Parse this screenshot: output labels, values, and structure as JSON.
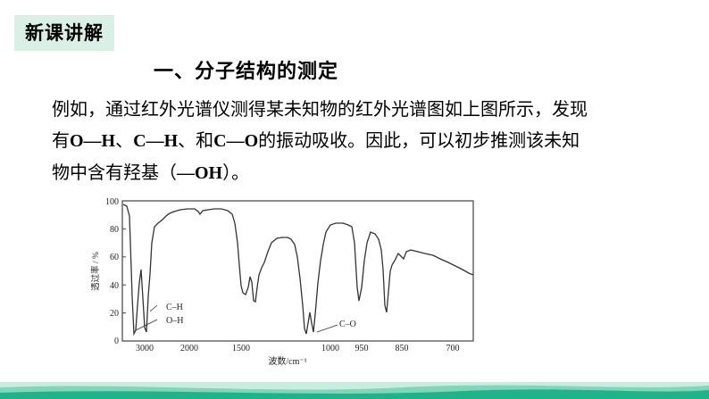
{
  "section_tag": "新课讲解",
  "heading": "一、分子结构的测定",
  "paragraph": {
    "line1": "例如，通过红外光谱仪测得某未知物的红外光谱图如上图所示，发现",
    "line2_prefix": "有",
    "bond_oh": "O—H",
    "sep1": "、",
    "bond_ch": "C—H",
    "sep2": "、和",
    "bond_co": "C—O",
    "line2_suffix": "的振动吸收。因此，可以初步推测该未知",
    "line3_prefix": "物中含有羟基（",
    "group": "—OH",
    "line3_suffix": "）。"
  },
  "chart_data": {
    "type": "line",
    "ylabel": "透过率 / %",
    "xlabel": "波数/cm⁻¹",
    "y_ticks": [
      "0",
      "20",
      "40",
      "60",
      "80",
      "100"
    ],
    "x_ticks": [
      "3000",
      "2000",
      "1500",
      "1000",
      "950",
      "850",
      "700"
    ],
    "ylim": [
      0,
      100
    ],
    "annotations": [
      "C–H",
      "O–H",
      "C–O"
    ],
    "grid": false,
    "colors": {
      "line": "#333333",
      "frame": "#444444"
    }
  },
  "footer_colors": [
    "#1fb38a",
    "#7fd6b8",
    "#c8ede0"
  ]
}
